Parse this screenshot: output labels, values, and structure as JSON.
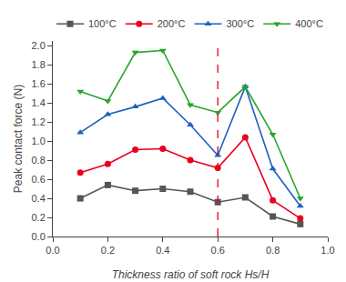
{
  "chart_data": {
    "type": "line",
    "x": [
      0.1,
      0.2,
      0.3,
      0.4,
      0.5,
      0.6,
      0.7,
      0.8,
      0.9
    ],
    "series": [
      {
        "name": "100°C",
        "color": "#555555",
        "marker": "square",
        "values": [
          0.4,
          0.54,
          0.48,
          0.5,
          0.47,
          0.36,
          0.41,
          0.21,
          0.13
        ]
      },
      {
        "name": "200°C",
        "color": "#e8001c",
        "marker": "circle",
        "values": [
          0.67,
          0.76,
          0.91,
          0.92,
          0.8,
          0.72,
          1.04,
          0.38,
          0.19
        ]
      },
      {
        "name": "300°C",
        "color": "#2060c0",
        "marker": "triangle-up",
        "values": [
          1.09,
          1.28,
          1.36,
          1.45,
          1.17,
          0.85,
          1.57,
          0.71,
          0.32
        ]
      },
      {
        "name": "400°C",
        "color": "#28a428",
        "marker": "triangle-down",
        "values": [
          1.52,
          1.42,
          1.93,
          1.95,
          1.38,
          1.3,
          1.57,
          1.07,
          0.4
        ]
      }
    ],
    "vlines": [
      {
        "x": 0.6,
        "color": "#e8001c",
        "line_style": "dashed"
      }
    ],
    "xlabel": "Thickness ratio of soft rock Hs/H",
    "ylabel": "Peak contact force (N)",
    "xlim": [
      0.0,
      1.0
    ],
    "ylim": [
      0.0,
      2.05
    ],
    "xticks": [
      {
        "value": 0.0,
        "label": "0.0"
      },
      0.2,
      0.4,
      0.6,
      0.8,
      {
        "value": 1.0,
        "label": "1.0"
      }
    ],
    "yticks": [
      {
        "value": 0.0,
        "label": "0.0"
      },
      0.2,
      0.4,
      0.6,
      0.8,
      {
        "value": 1.0,
        "label": "1.0"
      },
      1.2,
      1.4,
      1.6,
      1.8,
      {
        "value": 2.0,
        "label": "2.0"
      }
    ],
    "grid": false,
    "legend": "top"
  }
}
